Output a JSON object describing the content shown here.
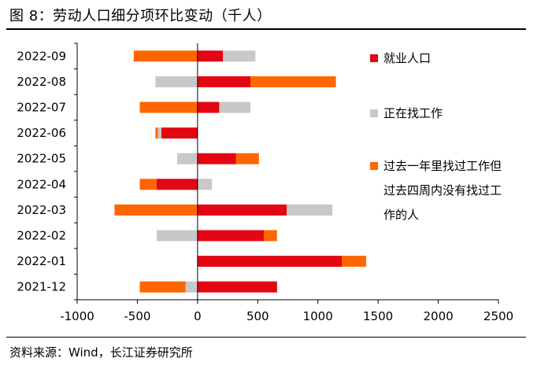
{
  "figure": {
    "title": "图 8：劳动人口细分项环比变动（千人）",
    "source": "资料来源：Wind，长江证券研究所"
  },
  "chart_data": {
    "type": "bar",
    "orientation": "horizontal",
    "stacked": true,
    "unit": "千人",
    "categories": [
      "2022-09",
      "2022-08",
      "2022-07",
      "2022-06",
      "2022-05",
      "2022-04",
      "2022-03",
      "2022-02",
      "2022-01",
      "2021-12"
    ],
    "series": [
      {
        "name": "就业人口",
        "color": "#e30613",
        "values": [
          210,
          440,
          180,
          -300,
          320,
          -340,
          740,
          550,
          1200,
          660
        ]
      },
      {
        "name": "正在找工作",
        "color": "#c8c8c8",
        "values": [
          270,
          -350,
          260,
          -30,
          -170,
          120,
          380,
          -340,
          0,
          -100
        ]
      },
      {
        "name": "过去一年里找过工作但过去四周内没有找过工作的人",
        "color": "#ff6600",
        "values": [
          -530,
          710,
          -480,
          -20,
          190,
          -140,
          -690,
          110,
          200,
          -380
        ]
      }
    ],
    "legend_lines": [
      [
        "就业人口"
      ],
      [
        "正在找工作"
      ],
      [
        "过去一年里找过工作但",
        "过去四周内没有找过工",
        "作的人"
      ]
    ],
    "xlim": [
      -1000,
      2500
    ],
    "xticks": [
      -1000,
      -500,
      0,
      500,
      1000,
      1500,
      2000,
      2500
    ],
    "xlabel": "",
    "ylabel": "",
    "grid": false,
    "legend_position": "right"
  }
}
